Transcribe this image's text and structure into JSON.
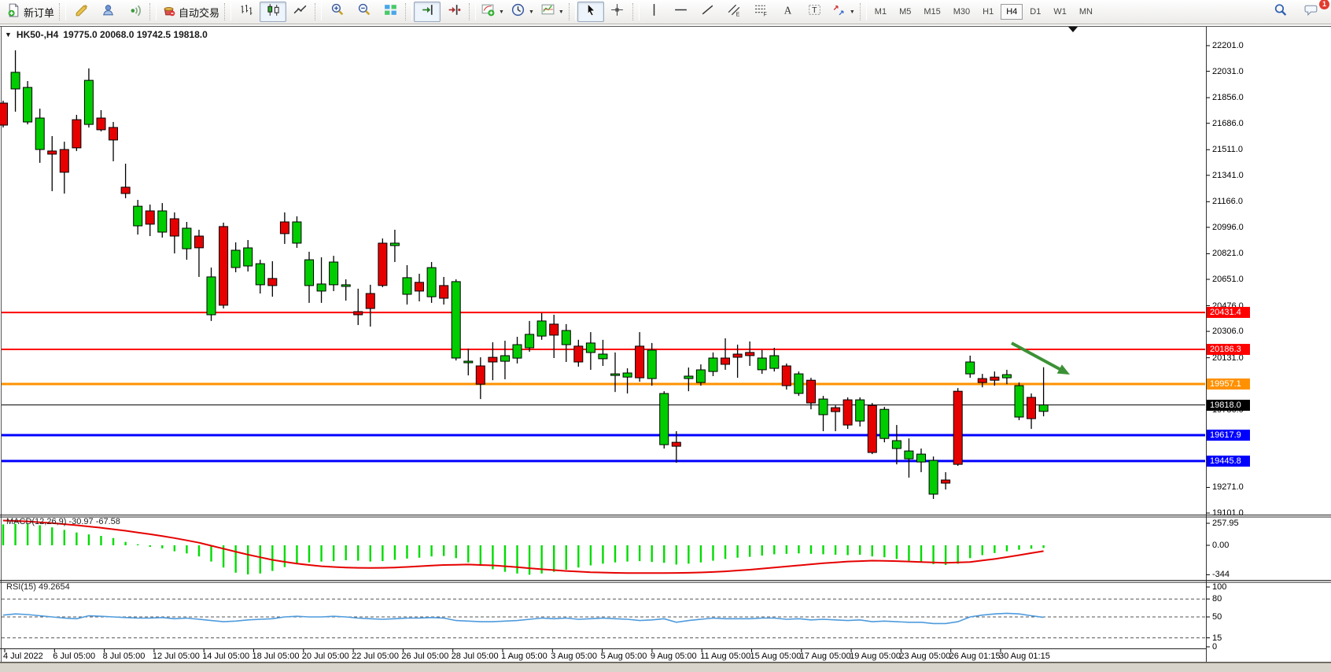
{
  "toolbar": {
    "new_order_label": "新订单",
    "auto_trading_label": "自动交易",
    "notification_count": "1",
    "groups": [
      {
        "items": [
          {
            "name": "new-order",
            "label": "新订单"
          }
        ]
      },
      {
        "items": [
          {
            "name": "crayon"
          },
          {
            "name": "profile"
          },
          {
            "name": "broadcast"
          }
        ]
      },
      {
        "items": [
          {
            "name": "auto-trading",
            "label": "自动交易"
          }
        ]
      },
      {
        "items": [
          {
            "name": "chart-bars"
          },
          {
            "name": "chart-candles",
            "pressed": true
          },
          {
            "name": "chart-line"
          }
        ]
      },
      {
        "items": [
          {
            "name": "zoom-in"
          },
          {
            "name": "zoom-out"
          },
          {
            "name": "tile-windows"
          }
        ]
      },
      {
        "items": [
          {
            "name": "auto-scroll",
            "pressed": true
          },
          {
            "name": "chart-shift"
          }
        ]
      },
      {
        "items": [
          {
            "name": "indicators",
            "dropdown": true
          },
          {
            "name": "periods",
            "dropdown": true
          },
          {
            "name": "templates",
            "dropdown": true
          }
        ]
      },
      {
        "items": [
          {
            "name": "cursor",
            "pressed": true
          },
          {
            "name": "crosshair"
          }
        ]
      },
      {
        "items": [
          {
            "name": "vertical-line"
          },
          {
            "name": "horizontal-line"
          },
          {
            "name": "trendline"
          },
          {
            "name": "equidistant-channel"
          },
          {
            "name": "fibonacci"
          },
          {
            "name": "text"
          },
          {
            "name": "text-label"
          },
          {
            "name": "arrows",
            "dropdown": true
          }
        ]
      }
    ],
    "timeframes": [
      "M1",
      "M5",
      "M15",
      "M30",
      "H1",
      "H4",
      "D1",
      "W1",
      "MN"
    ],
    "active_timeframe": "H4"
  },
  "chart": {
    "title_label": "HK50-,H4",
    "ohlc_label": "19775.0 20068.0 19742.5 19818.0"
  },
  "chart_data": {
    "type": "candlestick",
    "symbol": "HK50-",
    "timeframe": "H4",
    "last_ohlc": {
      "open": 19775.0,
      "high": 20068.0,
      "low": 19742.5,
      "close": 19818.0
    },
    "bull_color": "#00CD00",
    "bear_color": "#E60000",
    "y_axis": {
      "ticks": [
        "22201.0",
        "22031.0",
        "21856.0",
        "21686.0",
        "21511.0",
        "21341.0",
        "21166.0",
        "20996.0",
        "20821.0",
        "20651.0",
        "20476.0",
        "20306.0",
        "20131.0",
        "19786.0",
        "19271.0",
        "19101.0"
      ],
      "range": [
        19101.0,
        22201.0
      ]
    },
    "x_axis": {
      "labels": [
        "4 Jul 2022",
        "6 Jul 05:00",
        "8 Jul 05:00",
        "12 Jul 05:00",
        "14 Jul 05:00",
        "18 Jul 05:00",
        "20 Jul 05:00",
        "22 Jul 05:00",
        "26 Jul 05:00",
        "28 Jul 05:00",
        "1 Aug 05:00",
        "3 Aug 05:00",
        "5 Aug 05:00",
        "9 Aug 05:00",
        "11 Aug 05:00",
        "15 Aug 05:00",
        "17 Aug 05:00",
        "19 Aug 05:00",
        "23 Aug 05:00",
        "26 Aug 01:15",
        "30 Aug 01:15"
      ]
    },
    "levels": [
      {
        "price": 20431.4,
        "label": "20431.4",
        "color": "#FF0000",
        "width": 2
      },
      {
        "price": 20186.3,
        "label": "20186.3",
        "color": "#FF0000",
        "width": 2
      },
      {
        "price": 19957.1,
        "label": "19957.1",
        "color": "#FF9100",
        "width": 3
      },
      {
        "price": 19818.0,
        "label": "19818.0",
        "color": "#000000",
        "width": 1
      },
      {
        "price": 19617.9,
        "label": "19617.9",
        "color": "#0000FF",
        "width": 3
      },
      {
        "price": 19445.8,
        "label": "19445.8",
        "color": "#0000FF",
        "width": 3
      }
    ],
    "annotations": [
      {
        "name": "trend-arrow",
        "color": "#3C9136",
        "direction": "down-right"
      }
    ],
    "candles": [
      [
        21820,
        21836,
        21658,
        21674
      ],
      [
        21914,
        22170,
        21763,
        22024
      ],
      [
        21695,
        21966,
        21679,
        21924
      ],
      [
        21512,
        21783,
        21424,
        21721
      ],
      [
        21502,
        21601,
        21236,
        21481
      ],
      [
        21512,
        21564,
        21220,
        21361
      ],
      [
        21710,
        21742,
        21502,
        21523
      ],
      [
        21679,
        22050,
        21658,
        21971
      ],
      [
        21721,
        21773,
        21632,
        21643
      ],
      [
        21658,
        21695,
        21434,
        21575
      ],
      [
        21262,
        21418,
        21189,
        21220
      ],
      [
        21006,
        21178,
        20948,
        21136
      ],
      [
        21105,
        21147,
        20938,
        21017
      ],
      [
        20964,
        21157,
        20928,
        21105
      ],
      [
        21053,
        21095,
        20823,
        20938
      ],
      [
        20854,
        21032,
        20781,
        20990
      ],
      [
        20938,
        20980,
        20667,
        20860
      ],
      [
        20416,
        20729,
        20375,
        20667
      ],
      [
        21001,
        21027,
        20458,
        20479
      ],
      [
        20729,
        20896,
        20698,
        20844
      ],
      [
        20740,
        20912,
        20703,
        20860
      ],
      [
        20615,
        20781,
        20557,
        20755
      ],
      [
        20657,
        20771,
        20536,
        20610
      ],
      [
        21032,
        21095,
        20886,
        20954
      ],
      [
        20891,
        21069,
        20860,
        21032
      ],
      [
        20610,
        20834,
        20495,
        20781
      ],
      [
        20573,
        20797,
        20495,
        20620
      ],
      [
        20615,
        20807,
        20573,
        20766
      ],
      [
        20604,
        20651,
        20510,
        20615
      ],
      [
        20437,
        20589,
        20348,
        20416
      ],
      [
        20557,
        20615,
        20338,
        20458
      ],
      [
        20891,
        20922,
        20599,
        20610
      ],
      [
        20875,
        20980,
        20766,
        20891
      ],
      [
        20552,
        20745,
        20484,
        20662
      ],
      [
        20631,
        20688,
        20505,
        20573
      ],
      [
        20536,
        20766,
        20495,
        20729
      ],
      [
        20610,
        20667,
        20484,
        20526
      ],
      [
        20129,
        20651,
        20113,
        20636
      ],
      [
        20098,
        20192,
        20014,
        20108
      ],
      [
        20077,
        20134,
        19857,
        19956
      ],
      [
        20134,
        20234,
        19982,
        20103
      ],
      [
        20108,
        20244,
        19988,
        20145
      ],
      [
        20129,
        20270,
        20093,
        20218
      ],
      [
        20197,
        20375,
        20171,
        20286
      ],
      [
        20275,
        20427,
        20250,
        20375
      ],
      [
        20354,
        20416,
        20129,
        20281
      ],
      [
        20218,
        20354,
        20103,
        20312
      ],
      [
        20208,
        20250,
        20072,
        20103
      ],
      [
        20166,
        20301,
        20051,
        20229
      ],
      [
        20124,
        20250,
        20077,
        20155
      ],
      [
        20014,
        20166,
        19904,
        20024
      ],
      [
        20003,
        20061,
        19894,
        20030
      ],
      [
        20208,
        20301,
        19972,
        19998
      ],
      [
        19993,
        20229,
        19946,
        20182
      ],
      [
        19555,
        19909,
        19529,
        19894
      ],
      [
        19570,
        19644,
        19435,
        19544
      ],
      [
        19993,
        20066,
        19909,
        20009
      ],
      [
        19967,
        20087,
        19946,
        20051
      ],
      [
        20040,
        20166,
        20009,
        20129
      ],
      [
        20129,
        20260,
        20051,
        20087
      ],
      [
        20155,
        20218,
        19998,
        20134
      ],
      [
        20166,
        20239,
        20077,
        20145
      ],
      [
        20051,
        20182,
        20024,
        20129
      ],
      [
        20061,
        20197,
        20040,
        20145
      ],
      [
        20077,
        20093,
        19920,
        19946
      ],
      [
        19894,
        20040,
        19878,
        20024
      ],
      [
        19982,
        19998,
        19789,
        19831
      ],
      [
        19753,
        19878,
        19644,
        19857
      ],
      [
        19800,
        19815,
        19644,
        19774
      ],
      [
        19852,
        19868,
        19659,
        19685
      ],
      [
        19711,
        19868,
        19675,
        19852
      ],
      [
        19815,
        19831,
        19492,
        19503
      ],
      [
        19596,
        19805,
        19570,
        19789
      ],
      [
        19529,
        19685,
        19424,
        19581
      ],
      [
        19461,
        19596,
        19336,
        19513
      ],
      [
        19440,
        19529,
        19372,
        19492
      ],
      [
        19226,
        19476,
        19195,
        19450
      ],
      [
        19320,
        19372,
        19257,
        19299
      ],
      [
        19909,
        19930,
        19414,
        19424
      ],
      [
        20024,
        20145,
        19998,
        20103
      ],
      [
        19993,
        20024,
        19935,
        19967
      ],
      [
        20003,
        20040,
        19946,
        19982
      ],
      [
        19998,
        20051,
        19956,
        20019
      ],
      [
        19738,
        19967,
        19717,
        19946
      ],
      [
        19868,
        19894,
        19659,
        19727
      ],
      [
        19775,
        20068,
        19742.5,
        19818
      ]
    ],
    "indicators": [
      {
        "name": "MACD",
        "label": "MACD(12,26,9) -30.97 -67.58",
        "params": "12,26,9",
        "current_values": [
          "-30.97",
          "-67.58"
        ],
        "axis_ticks": [
          "257.95",
          "0.00",
          "-344"
        ],
        "axis_tick_values": [
          257.95,
          0,
          -344
        ],
        "histogram_color": "#00DC00",
        "signal_color": "#E60000",
        "histogram": [
          245,
          252,
          248,
          235,
          210,
          180,
          150,
          128,
          110,
          85,
          40,
          12,
          -18,
          -35,
          -70,
          -95,
          -130,
          -190,
          -260,
          -320,
          -340,
          -330,
          -300,
          -255,
          -215,
          -200,
          -190,
          -185,
          -175,
          -180,
          -190,
          -185,
          -170,
          -155,
          -145,
          -130,
          -125,
          -150,
          -200,
          -240,
          -280,
          -310,
          -330,
          -344,
          -330,
          -310,
          -285,
          -260,
          -235,
          -215,
          -200,
          -190,
          -185,
          -195,
          -205,
          -225,
          -215,
          -200,
          -180,
          -160,
          -145,
          -135,
          -120,
          -105,
          -100,
          -95,
          -100,
          -105,
          -110,
          -115,
          -110,
          -130,
          -140,
          -160,
          -180,
          -195,
          -220,
          -230,
          -215,
          -150,
          -115,
          -90,
          -70,
          -52,
          -40,
          -31
        ],
        "signal": [
          290,
          285,
          280,
          270,
          260,
          248,
          235,
          220,
          205,
          188,
          170,
          150,
          130,
          108,
          85,
          58,
          30,
          -5,
          -40,
          -75,
          -110,
          -140,
          -170,
          -193,
          -215,
          -230,
          -245,
          -253,
          -260,
          -263,
          -265,
          -263,
          -260,
          -253,
          -245,
          -238,
          -230,
          -227,
          -225,
          -230,
          -235,
          -245,
          -255,
          -268,
          -280,
          -290,
          -300,
          -308,
          -315,
          -319,
          -322,
          -324,
          -325,
          -325,
          -324,
          -323,
          -321,
          -318,
          -312,
          -305,
          -295,
          -285,
          -273,
          -260,
          -248,
          -235,
          -222,
          -210,
          -200,
          -190,
          -185,
          -180,
          -182,
          -185,
          -190,
          -195,
          -200,
          -205,
          -200,
          -195,
          -178,
          -160,
          -138,
          -115,
          -91,
          -68
        ]
      },
      {
        "name": "RSI",
        "label": "RSI(15) 49.2654",
        "period": 15,
        "current_value": 49.2654,
        "axis_ticks": [
          "100",
          "80",
          "50",
          "15",
          "0"
        ],
        "axis_tick_values": [
          100,
          80,
          50,
          15,
          0
        ],
        "level_lines": [
          80,
          50,
          15
        ],
        "color": "#4E9BDD",
        "series": [
          53,
          55,
          54,
          52,
          50,
          48,
          47,
          52,
          51,
          50,
          49,
          48,
          48,
          49,
          47,
          48,
          46,
          44,
          42,
          43,
          45,
          46,
          47,
          50,
          51,
          50,
          50,
          51,
          50,
          48,
          47,
          46,
          47,
          48,
          48,
          49,
          48,
          44,
          43,
          42,
          42,
          43,
          44,
          46,
          48,
          47,
          48,
          46,
          47,
          48,
          47,
          46,
          44,
          45,
          47,
          41,
          44,
          46,
          48,
          47,
          47,
          47,
          48,
          48,
          46,
          47,
          45,
          46,
          45,
          44,
          45,
          42,
          43,
          42,
          41,
          41,
          39,
          39,
          42,
          50,
          53,
          55,
          56,
          55,
          52,
          49.27
        ]
      }
    ]
  }
}
